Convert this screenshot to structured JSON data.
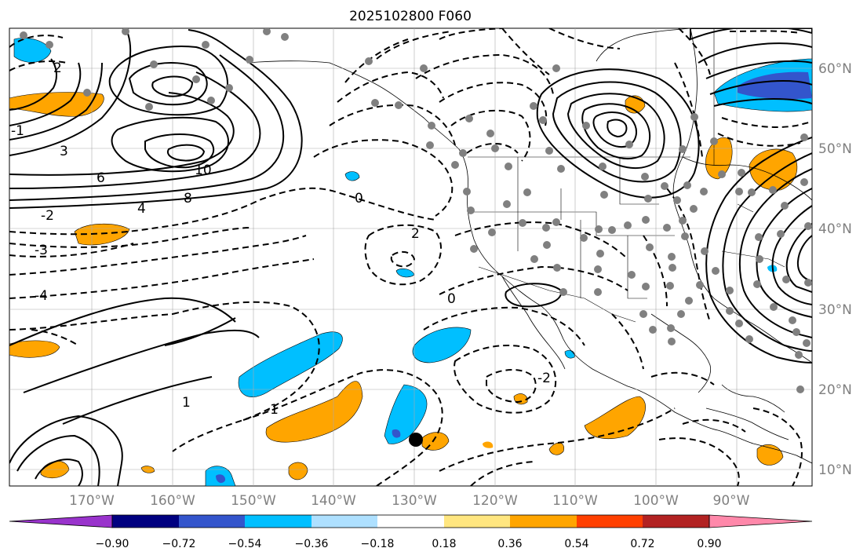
{
  "title": "2025102800 F060",
  "lon_ticks": [
    "170°W",
    "160°W",
    "150°W",
    "140°W",
    "130°W",
    "120°W",
    "110°W",
    "100°W",
    "90°W"
  ],
  "lat_ticks": [
    "60°N",
    "50°N",
    "40°N",
    "30°N",
    "20°N",
    "10°N"
  ],
  "colorbar": {
    "labels": [
      "−0.90",
      "−0.72",
      "−0.54",
      "−0.36",
      "−0.18",
      "0.18",
      "0.36",
      "0.54",
      "0.72",
      "0.90"
    ],
    "colors": [
      "#9933cc",
      "#000080",
      "#3355cc",
      "#00bfff",
      "#aee0ff",
      "#ffffff",
      "#ffe680",
      "#ffa500",
      "#ff4000",
      "#b22222",
      "#ff88aa"
    ]
  },
  "contour_labels": [
    "1",
    "2",
    "6",
    "8",
    "10",
    "3",
    "4",
    "0",
    "-1",
    "-2",
    "-3",
    "-4",
    "2",
    "0",
    "-1",
    "-2"
  ]
}
